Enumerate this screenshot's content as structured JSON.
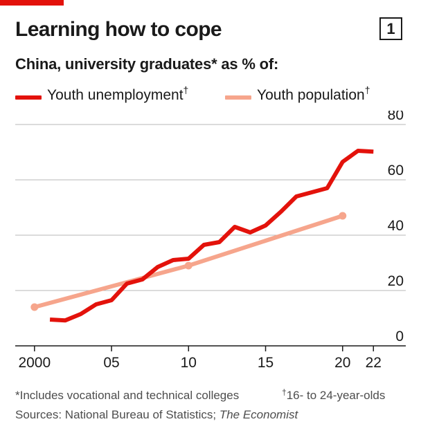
{
  "header": {
    "title": "Learning how to cope",
    "chart_number": "1",
    "subtitle": "China, university graduates* as % of:"
  },
  "legend": [
    {
      "label": "Youth unemployment",
      "mark": "†"
    },
    {
      "label": "Youth population",
      "mark": "†"
    }
  ],
  "footnotes": {
    "note_1": "*Includes vocational and technical colleges",
    "note_2_mark": "†",
    "note_2": "16- to 24-year-olds",
    "sources_prefix": "Sources: National Bureau of Statistics; ",
    "sources_italic": "The Economist"
  },
  "colors": {
    "accent": "#e3120b",
    "series_unemployment": "#e3120b",
    "series_population": "#f6a58c",
    "grid": "#b7b7b7",
    "axis": "#1a1a1a"
  },
  "chart_data": {
    "type": "line",
    "title": "Learning how to cope",
    "subtitle": "China, university graduates* as % of:",
    "xlim": [
      1998.75,
      2024.1
    ],
    "ylim": [
      0,
      80
    ],
    "yticks": [
      0,
      20,
      40,
      60,
      80
    ],
    "ytick_labels": [
      "0",
      "20",
      "40",
      "60",
      "80"
    ],
    "xticks": [
      2000,
      2005,
      2010,
      2015,
      2020,
      2022
    ],
    "xtick_labels": [
      "2000",
      "05",
      "10",
      "15",
      "20",
      "22"
    ],
    "grid": true,
    "legend_position": "top-left",
    "series": [
      {
        "name": "Youth unemployment",
        "x": [
          2001,
          2002,
          2003,
          2004,
          2005,
          2006,
          2007,
          2008,
          2009,
          2010,
          2011,
          2012,
          2013,
          2014,
          2015,
          2016,
          2017,
          2018,
          2019,
          2020,
          2021,
          2022
        ],
        "values": [
          9.5,
          9.2,
          11.5,
          15,
          16.5,
          22.5,
          24,
          28.5,
          31,
          31.5,
          36.5,
          37.5,
          43,
          41,
          43.5,
          48.5,
          54,
          55.5,
          57,
          66.5,
          70.5,
          70.2
        ]
      },
      {
        "name": "Youth population",
        "x": [
          2000,
          2010,
          2020
        ],
        "values": [
          14,
          29,
          47
        ],
        "markers": true
      }
    ]
  }
}
